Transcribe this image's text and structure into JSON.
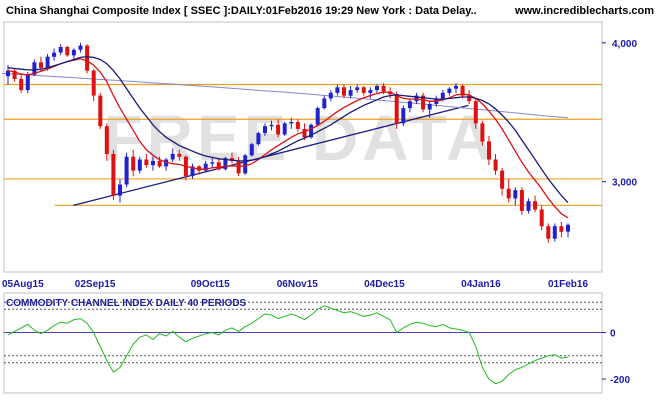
{
  "header": {
    "title": "China Shanghai Composite Index [ SSEC ]:DAILY:01Feb2016 19:29 New York : Data Delay..",
    "site": "www.incrediblecharts.com"
  },
  "watermark": "FREE DATA",
  "colors": {
    "up_candle": "#2222cc",
    "down_candle": "#dd1111",
    "ma_fast": "#dd1111",
    "ma_slow": "#1a1a7a",
    "ma_long": "#8888cc",
    "horizontal_levels": "#f0a020",
    "trendline": "#1a1a88",
    "cci_line": "#22bb22",
    "axis_text": "#1a1aa8"
  },
  "chart_data": [
    {
      "type": "candlestick",
      "title": "China Shanghai Composite Index [ SSEC ]:DAILY:01Feb2016 19:29 New York : Data Delay..",
      "x_tick_labels": [
        "05Aug15",
        "02Sep15",
        "09Oct15",
        "06Nov15",
        "04Dec15",
        "04Jan16",
        "01Feb16"
      ],
      "y_tick_labels": [
        "4,000",
        "3,000"
      ],
      "ylim": [
        2350,
        4150
      ],
      "grid": false,
      "horizontal_levels": [
        3700,
        3450,
        3020,
        2830
      ],
      "trendline": {
        "from": {
          "date": "2015-08-26",
          "value": 2830
        },
        "to": {
          "date": "2015-12-31",
          "value": 3550
        }
      },
      "ma_long_endpoints": [
        {
          "date": "2015-08-03",
          "value": 3780
        },
        {
          "date": "2016-02-01",
          "value": 3460
        }
      ],
      "candles": [
        [
          3760,
          3840,
          3700,
          3800
        ],
        [
          3800,
          3820,
          3720,
          3740
        ],
        [
          3740,
          3780,
          3640,
          3660
        ],
        [
          3660,
          3790,
          3640,
          3770
        ],
        [
          3770,
          3880,
          3760,
          3860
        ],
        [
          3860,
          3900,
          3800,
          3820
        ],
        [
          3820,
          3920,
          3800,
          3900
        ],
        [
          3900,
          3960,
          3870,
          3930
        ],
        [
          3930,
          3990,
          3910,
          3970
        ],
        [
          3970,
          3980,
          3900,
          3910
        ],
        [
          3910,
          3960,
          3880,
          3950
        ],
        [
          3950,
          4000,
          3930,
          3980
        ],
        [
          3980,
          3990,
          3780,
          3800
        ],
        [
          3800,
          3810,
          3580,
          3620
        ],
        [
          3620,
          3640,
          3380,
          3400
        ],
        [
          3400,
          3420,
          3150,
          3200
        ],
        [
          3200,
          3230,
          2870,
          2900
        ],
        [
          2900,
          3020,
          2850,
          2980
        ],
        [
          2980,
          3210,
          2960,
          3180
        ],
        [
          3180,
          3230,
          3040,
          3080
        ],
        [
          3080,
          3180,
          3060,
          3160
        ],
        [
          3160,
          3200,
          3100,
          3120
        ],
        [
          3120,
          3180,
          3080,
          3150
        ],
        [
          3150,
          3180,
          3100,
          3110
        ],
        [
          3110,
          3170,
          3080,
          3160
        ],
        [
          3160,
          3240,
          3140,
          3200
        ],
        [
          3200,
          3230,
          3150,
          3180
        ],
        [
          3180,
          3190,
          3010,
          3040
        ],
        [
          3040,
          3130,
          3020,
          3110
        ],
        [
          3110,
          3120,
          3050,
          3080
        ],
        [
          3080,
          3150,
          3070,
          3130
        ],
        [
          3130,
          3170,
          3100,
          3140
        ],
        [
          3140,
          3170,
          3080,
          3090
        ],
        [
          3090,
          3180,
          3080,
          3170
        ],
        [
          3170,
          3210,
          3130,
          3150
        ],
        [
          3150,
          3180,
          3040,
          3060
        ],
        [
          3060,
          3200,
          3050,
          3190
        ],
        [
          3190,
          3280,
          3180,
          3270
        ],
        [
          3270,
          3360,
          3260,
          3350
        ],
        [
          3350,
          3420,
          3330,
          3400
        ],
        [
          3400,
          3440,
          3370,
          3410
        ],
        [
          3410,
          3450,
          3320,
          3340
        ],
        [
          3340,
          3430,
          3330,
          3420
        ],
        [
          3420,
          3460,
          3380,
          3430
        ],
        [
          3430,
          3450,
          3360,
          3380
        ],
        [
          3380,
          3420,
          3300,
          3320
        ],
        [
          3320,
          3420,
          3310,
          3410
        ],
        [
          3410,
          3540,
          3400,
          3530
        ],
        [
          3530,
          3620,
          3520,
          3600
        ],
        [
          3600,
          3660,
          3580,
          3640
        ],
        [
          3640,
          3700,
          3620,
          3680
        ],
        [
          3680,
          3700,
          3600,
          3620
        ],
        [
          3620,
          3690,
          3600,
          3660
        ],
        [
          3660,
          3700,
          3640,
          3680
        ],
        [
          3680,
          3690,
          3620,
          3640
        ],
        [
          3640,
          3680,
          3600,
          3660
        ],
        [
          3660,
          3700,
          3640,
          3690
        ],
        [
          3690,
          3710,
          3630,
          3650
        ],
        [
          3650,
          3680,
          3600,
          3630
        ],
        [
          3630,
          3650,
          3380,
          3420
        ],
        [
          3420,
          3550,
          3400,
          3530
        ],
        [
          3530,
          3600,
          3500,
          3580
        ],
        [
          3580,
          3640,
          3560,
          3620
        ],
        [
          3620,
          3640,
          3500,
          3520
        ],
        [
          3520,
          3580,
          3460,
          3560
        ],
        [
          3560,
          3620,
          3540,
          3600
        ],
        [
          3600,
          3660,
          3580,
          3640
        ],
        [
          3640,
          3680,
          3620,
          3670
        ],
        [
          3670,
          3710,
          3640,
          3690
        ],
        [
          3690,
          3700,
          3600,
          3620
        ],
        [
          3620,
          3660,
          3560,
          3580
        ],
        [
          3580,
          3600,
          3380,
          3420
        ],
        [
          3420,
          3440,
          3260,
          3290
        ],
        [
          3290,
          3330,
          3120,
          3160
        ],
        [
          3160,
          3200,
          3050,
          3080
        ],
        [
          3080,
          3100,
          2900,
          2950
        ],
        [
          2950,
          3020,
          2850,
          2880
        ],
        [
          2880,
          2960,
          2830,
          2940
        ],
        [
          2940,
          2960,
          2760,
          2790
        ],
        [
          2790,
          2880,
          2770,
          2860
        ],
        [
          2860,
          2900,
          2780,
          2800
        ],
        [
          2800,
          2830,
          2650,
          2680
        ],
        [
          2680,
          2700,
          2560,
          2590
        ],
        [
          2590,
          2700,
          2570,
          2680
        ],
        [
          2680,
          2710,
          2600,
          2640
        ],
        [
          2640,
          2700,
          2600,
          2690
        ]
      ],
      "moving_averages": [
        {
          "name": "",
          "values": [
            3800,
            3790,
            3775,
            3770,
            3780,
            3795,
            3810,
            3830,
            3850,
            3865,
            3875,
            3885,
            3870,
            3840,
            3790,
            3720,
            3620,
            3530,
            3450,
            3370,
            3290,
            3230,
            3190,
            3160,
            3140,
            3130,
            3125,
            3110,
            3100,
            3090,
            3090,
            3100,
            3105,
            3110,
            3115,
            3110,
            3115,
            3130,
            3160,
            3195,
            3230,
            3260,
            3290,
            3320,
            3345,
            3360,
            3380,
            3405,
            3435,
            3470,
            3505,
            3535,
            3560,
            3585,
            3605,
            3620,
            3635,
            3645,
            3645,
            3620,
            3600,
            3595,
            3595,
            3590,
            3580,
            3580,
            3590,
            3605,
            3625,
            3630,
            3625,
            3600,
            3560,
            3510,
            3450,
            3380,
            3300,
            3220,
            3140,
            3070,
            3010,
            2950,
            2880,
            2820,
            2770,
            2740
          ]
        },
        {
          "name": "",
          "values": [
            3820,
            3815,
            3810,
            3805,
            3805,
            3810,
            3820,
            3835,
            3850,
            3865,
            3880,
            3895,
            3900,
            3895,
            3880,
            3850,
            3800,
            3740,
            3670,
            3600,
            3530,
            3470,
            3410,
            3360,
            3320,
            3290,
            3260,
            3240,
            3220,
            3200,
            3185,
            3175,
            3165,
            3160,
            3155,
            3150,
            3150,
            3155,
            3165,
            3180,
            3200,
            3220,
            3245,
            3270,
            3295,
            3315,
            3335,
            3360,
            3385,
            3410,
            3440,
            3470,
            3500,
            3525,
            3550,
            3570,
            3590,
            3610,
            3620,
            3625,
            3620,
            3615,
            3610,
            3605,
            3600,
            3595,
            3595,
            3600,
            3605,
            3610,
            3610,
            3600,
            3585,
            3560,
            3525,
            3480,
            3430,
            3370,
            3300,
            3230,
            3160,
            3090,
            3020,
            2960,
            2900,
            2850
          ]
        }
      ]
    },
    {
      "type": "line",
      "title": "COMMODITY CHANNEL INDEX DAILY 40 PERIODS",
      "y_tick_labels": [
        "0",
        "-200"
      ],
      "ylim": [
        -260,
        170
      ],
      "reference_levels": [
        130,
        100,
        0,
        -100,
        -130
      ],
      "series": [
        {
          "name": "",
          "values": [
            -10,
            5,
            20,
            35,
            10,
            -5,
            10,
            30,
            45,
            40,
            55,
            60,
            40,
            0,
            -60,
            -120,
            -170,
            -150,
            -100,
            -50,
            -20,
            -10,
            -30,
            -5,
            -15,
            5,
            -20,
            -40,
            -25,
            -15,
            -5,
            0,
            -10,
            10,
            20,
            5,
            25,
            40,
            60,
            80,
            75,
            60,
            70,
            80,
            70,
            55,
            75,
            100,
            115,
            105,
            95,
            85,
            90,
            80,
            70,
            75,
            85,
            70,
            55,
            0,
            20,
            35,
            45,
            40,
            30,
            25,
            35,
            20,
            15,
            10,
            0,
            -60,
            -150,
            -200,
            -220,
            -210,
            -180,
            -160,
            -150,
            -135,
            -120,
            -110,
            -100,
            -95,
            -110,
            -105
          ]
        }
      ]
    }
  ]
}
